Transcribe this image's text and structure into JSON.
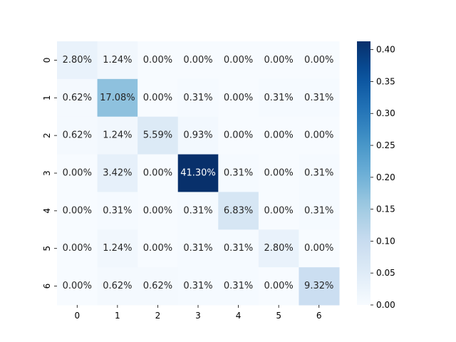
{
  "chart_data": {
    "type": "heatmap",
    "title": "",
    "xlabel": "",
    "ylabel": "",
    "x_tick_labels": [
      "0",
      "1",
      "2",
      "3",
      "4",
      "5",
      "6"
    ],
    "y_tick_labels": [
      "0",
      "1",
      "2",
      "3",
      "4",
      "5",
      "6"
    ],
    "values": [
      [
        0.028,
        0.0124,
        0.0,
        0.0,
        0.0,
        0.0,
        0.0
      ],
      [
        0.0062,
        0.1708,
        0.0,
        0.0031,
        0.0,
        0.0031,
        0.0031
      ],
      [
        0.0062,
        0.0124,
        0.0559,
        0.0093,
        0.0,
        0.0,
        0.0
      ],
      [
        0.0,
        0.0342,
        0.0,
        0.413,
        0.0031,
        0.0,
        0.0031
      ],
      [
        0.0,
        0.0031,
        0.0,
        0.0031,
        0.0683,
        0.0,
        0.0031
      ],
      [
        0.0,
        0.0124,
        0.0,
        0.0031,
        0.0031,
        0.028,
        0.0
      ],
      [
        0.0,
        0.0062,
        0.0062,
        0.0031,
        0.0031,
        0.0,
        0.0932
      ]
    ],
    "cell_labels": [
      [
        "2.80%",
        "1.24%",
        "0.00%",
        "0.00%",
        "0.00%",
        "0.00%",
        "0.00%"
      ],
      [
        "0.62%",
        "17.08%",
        "0.00%",
        "0.31%",
        "0.00%",
        "0.31%",
        "0.31%"
      ],
      [
        "0.62%",
        "1.24%",
        "5.59%",
        "0.93%",
        "0.00%",
        "0.00%",
        "0.00%"
      ],
      [
        "0.00%",
        "3.42%",
        "0.00%",
        "41.30%",
        "0.31%",
        "0.00%",
        "0.31%"
      ],
      [
        "0.00%",
        "0.31%",
        "0.00%",
        "0.31%",
        "6.83%",
        "0.00%",
        "0.31%"
      ],
      [
        "0.00%",
        "1.24%",
        "0.00%",
        "0.31%",
        "0.31%",
        "2.80%",
        "0.00%"
      ],
      [
        "0.00%",
        "0.62%",
        "0.62%",
        "0.31%",
        "0.31%",
        "0.00%",
        "9.32%"
      ]
    ],
    "colormap": "Blues",
    "vmin": 0,
    "vmax": 0.413,
    "colorbar_ticks": [
      "0.00",
      "0.05",
      "0.10",
      "0.15",
      "0.20",
      "0.25",
      "0.30",
      "0.35",
      "0.40"
    ],
    "colors": {
      "low": "#f7fbff",
      "high": "#08306b",
      "text_dark": "#262626",
      "text_light": "#ffffff"
    }
  }
}
